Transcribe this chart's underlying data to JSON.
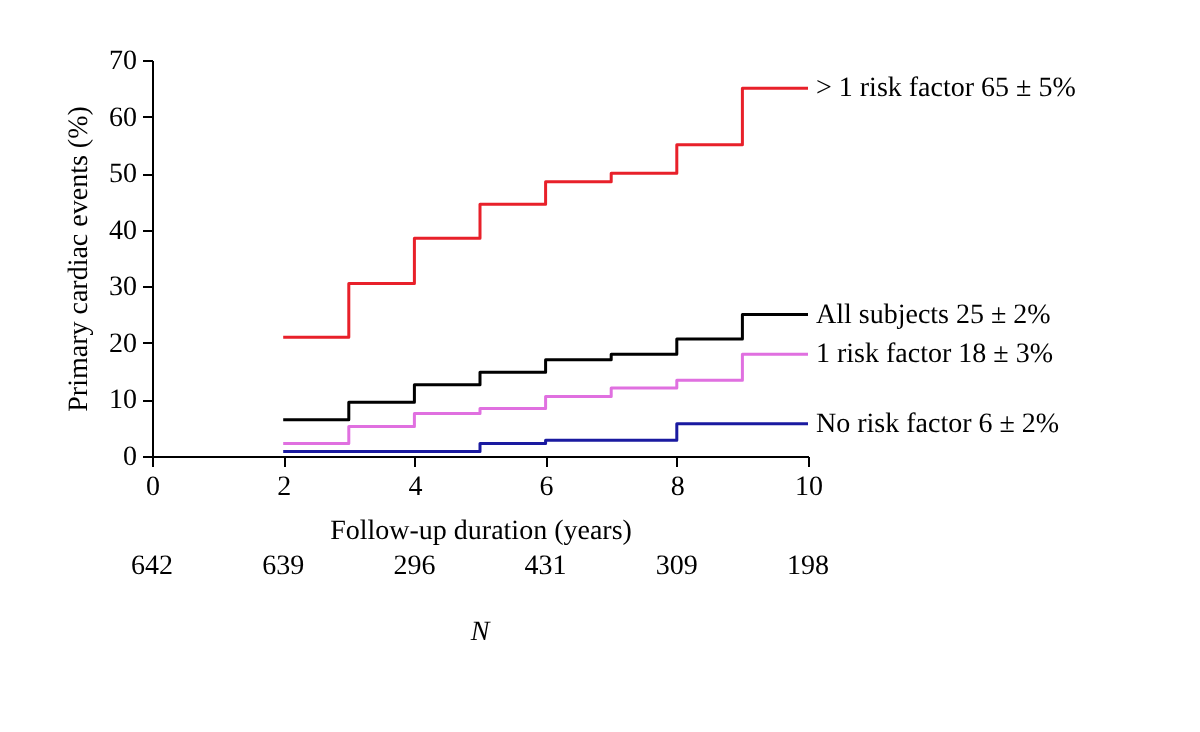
{
  "chart_data": {
    "type": "step",
    "xlabel": "Follow-up duration (years)",
    "ylabel": "Primary cardiac events (%)",
    "xlim": [
      0,
      10
    ],
    "xticks": [
      0,
      2,
      4,
      6,
      8,
      10
    ],
    "ylim": [
      0,
      70
    ],
    "yticks": [
      0,
      10,
      20,
      30,
      40,
      50,
      60,
      70
    ],
    "grid": false,
    "annotations": [
      "642",
      "639",
      "296",
      "431",
      "309",
      "198",
      "N"
    ],
    "series": [
      {
        "name": "> 1 risk factor 65 ± 5%",
        "color": "#e8202a",
        "x": [
          2,
          3,
          4,
          5,
          6,
          7,
          8,
          9,
          10
        ],
        "values": [
          21,
          30.5,
          38.5,
          44.5,
          48.5,
          50,
          55,
          65,
          65
        ]
      },
      {
        "name": "All subjects 25 ± 2%",
        "color": "#000000",
        "x": [
          2,
          3,
          4,
          5,
          6,
          7,
          8,
          9,
          10
        ],
        "values": [
          6.4,
          9.5,
          12.6,
          14.8,
          17,
          18,
          20.7,
          25,
          25
        ]
      },
      {
        "name": "1 risk factor 18 ± 3%",
        "color": "#e070e0",
        "x": [
          2,
          3,
          4,
          5,
          6,
          7,
          8,
          9,
          10
        ],
        "values": [
          2.2,
          5.2,
          7.5,
          8.4,
          10.5,
          12,
          13.4,
          18,
          18
        ]
      },
      {
        "name": "No risk factor 6 ± 2%",
        "color": "#1a1aa0",
        "x": [
          2,
          5,
          6,
          8,
          10
        ],
        "values": [
          0.8,
          2.2,
          2.8,
          5.7,
          5.7
        ]
      }
    ]
  }
}
